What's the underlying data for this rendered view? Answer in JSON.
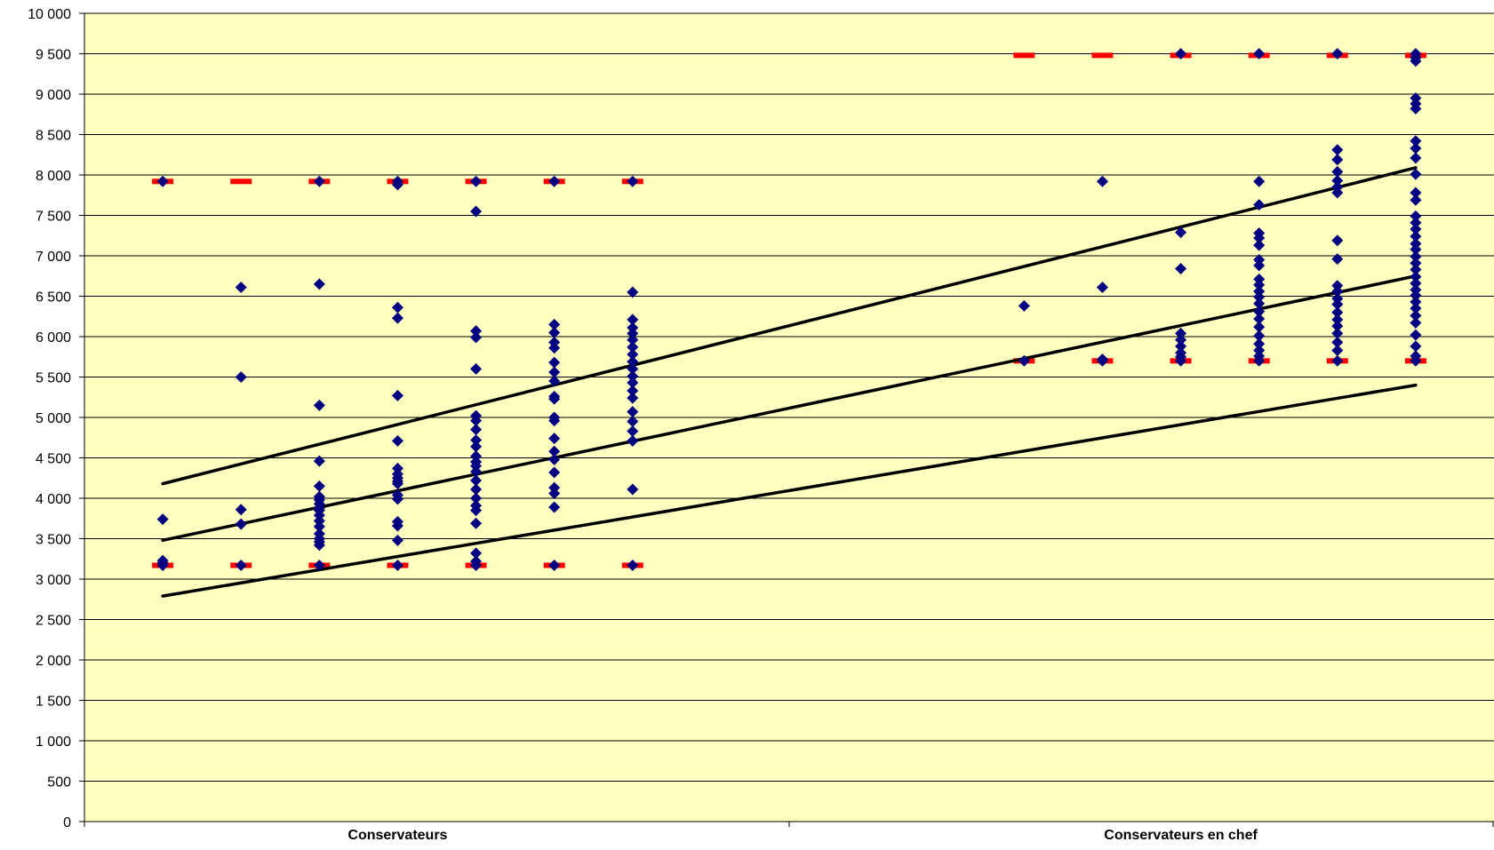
{
  "chart_data": {
    "type": "scatter",
    "title": "",
    "xlabel": "",
    "ylabel": "",
    "ylim": [
      0,
      10000
    ],
    "y_ticks": [
      0,
      500,
      1000,
      1500,
      2000,
      2500,
      3000,
      3500,
      4000,
      4500,
      5000,
      5500,
      6000,
      6500,
      7000,
      7500,
      8000,
      8500,
      9000,
      9500,
      10000
    ],
    "y_tick_labels": [
      "0",
      "500",
      "1 000",
      "1 500",
      "2 000",
      "2 500",
      "3 000",
      "3 500",
      "4 000",
      "4 500",
      "5 000",
      "5 500",
      "6 000",
      "6 500",
      "7 000",
      "7 500",
      "8 000",
      "8 500",
      "9 000",
      "9 500",
      "10 000"
    ],
    "x_range": [
      0,
      18
    ],
    "categories": [
      {
        "label": "Conservateurs",
        "x": 4
      },
      {
        "label": "Conservateurs en chef",
        "x": 14
      }
    ],
    "grid": "horizontal",
    "colors": {
      "plot_background": "#FFFFC0",
      "points": "#000080",
      "bounds": "#FF0000",
      "trend_lines": "#000000",
      "grid": "#000000"
    },
    "series": [
      {
        "role": "points",
        "points": [
          [
            1,
            3170
          ],
          [
            1,
            3200
          ],
          [
            1,
            3230
          ],
          [
            1,
            3740
          ],
          [
            1,
            7920
          ],
          [
            2,
            3170
          ],
          [
            2,
            3680
          ],
          [
            2,
            3860
          ],
          [
            2,
            5500
          ],
          [
            2,
            6610
          ],
          [
            3,
            3170
          ],
          [
            3,
            3420
          ],
          [
            3,
            3460
          ],
          [
            3,
            3500
          ],
          [
            3,
            3560
          ],
          [
            3,
            3650
          ],
          [
            3,
            3720
          ],
          [
            3,
            3790
          ],
          [
            3,
            3850
          ],
          [
            3,
            3880
          ],
          [
            3,
            3930
          ],
          [
            3,
            3980
          ],
          [
            3,
            4020
          ],
          [
            3,
            4150
          ],
          [
            3,
            4460
          ],
          [
            3,
            5150
          ],
          [
            3,
            6650
          ],
          [
            3,
            7920
          ],
          [
            4,
            3170
          ],
          [
            4,
            3480
          ],
          [
            4,
            3660
          ],
          [
            4,
            3710
          ],
          [
            4,
            3990
          ],
          [
            4,
            4040
          ],
          [
            4,
            4180
          ],
          [
            4,
            4210
          ],
          [
            4,
            4250
          ],
          [
            4,
            4300
          ],
          [
            4,
            4370
          ],
          [
            4,
            4710
          ],
          [
            4,
            5270
          ],
          [
            4,
            6230
          ],
          [
            4,
            6360
          ],
          [
            4,
            7880
          ],
          [
            4,
            7920
          ],
          [
            5,
            3170
          ],
          [
            5,
            3220
          ],
          [
            5,
            3320
          ],
          [
            5,
            3690
          ],
          [
            5,
            3850
          ],
          [
            5,
            3910
          ],
          [
            5,
            4000
          ],
          [
            5,
            4110
          ],
          [
            5,
            4220
          ],
          [
            5,
            4330
          ],
          [
            5,
            4400
          ],
          [
            5,
            4450
          ],
          [
            5,
            4520
          ],
          [
            5,
            4640
          ],
          [
            5,
            4720
          ],
          [
            5,
            4850
          ],
          [
            5,
            4960
          ],
          [
            5,
            5020
          ],
          [
            5,
            5600
          ],
          [
            5,
            5990
          ],
          [
            5,
            6070
          ],
          [
            5,
            7550
          ],
          [
            5,
            7920
          ],
          [
            6,
            3170
          ],
          [
            6,
            3890
          ],
          [
            6,
            4060
          ],
          [
            6,
            4130
          ],
          [
            6,
            4320
          ],
          [
            6,
            4480
          ],
          [
            6,
            4580
          ],
          [
            6,
            4740
          ],
          [
            6,
            4960
          ],
          [
            6,
            5000
          ],
          [
            6,
            5230
          ],
          [
            6,
            5260
          ],
          [
            6,
            5450
          ],
          [
            6,
            5560
          ],
          [
            6,
            5680
          ],
          [
            6,
            5860
          ],
          [
            6,
            5930
          ],
          [
            6,
            6050
          ],
          [
            6,
            6150
          ],
          [
            6,
            7920
          ],
          [
            7,
            3170
          ],
          [
            7,
            4110
          ],
          [
            7,
            4710
          ],
          [
            7,
            4830
          ],
          [
            7,
            4950
          ],
          [
            7,
            5070
          ],
          [
            7,
            5240
          ],
          [
            7,
            5330
          ],
          [
            7,
            5430
          ],
          [
            7,
            5510
          ],
          [
            7,
            5600
          ],
          [
            7,
            5690
          ],
          [
            7,
            5780
          ],
          [
            7,
            5870
          ],
          [
            7,
            5960
          ],
          [
            7,
            6040
          ],
          [
            7,
            6110
          ],
          [
            7,
            6210
          ],
          [
            7,
            6550
          ],
          [
            7,
            7920
          ],
          [
            12,
            5700
          ],
          [
            12,
            6380
          ],
          [
            13,
            5700
          ],
          [
            13,
            5720
          ],
          [
            13,
            6610
          ],
          [
            13,
            7920
          ],
          [
            14,
            5700
          ],
          [
            14,
            5750
          ],
          [
            14,
            5800
          ],
          [
            14,
            5880
          ],
          [
            14,
            5960
          ],
          [
            14,
            6040
          ],
          [
            14,
            6840
          ],
          [
            14,
            7290
          ],
          [
            14,
            9500
          ],
          [
            15,
            5700
          ],
          [
            15,
            5760
          ],
          [
            15,
            5830
          ],
          [
            15,
            5910
          ],
          [
            15,
            6010
          ],
          [
            15,
            6120
          ],
          [
            15,
            6220
          ],
          [
            15,
            6310
          ],
          [
            15,
            6410
          ],
          [
            15,
            6490
          ],
          [
            15,
            6560
          ],
          [
            15,
            6640
          ],
          [
            15,
            6710
          ],
          [
            15,
            6880
          ],
          [
            15,
            6950
          ],
          [
            15,
            7130
          ],
          [
            15,
            7220
          ],
          [
            15,
            7280
          ],
          [
            15,
            7630
          ],
          [
            15,
            7920
          ],
          [
            15,
            9500
          ],
          [
            16,
            5700
          ],
          [
            16,
            5830
          ],
          [
            16,
            5930
          ],
          [
            16,
            6040
          ],
          [
            16,
            6130
          ],
          [
            16,
            6210
          ],
          [
            16,
            6300
          ],
          [
            16,
            6400
          ],
          [
            16,
            6470
          ],
          [
            16,
            6560
          ],
          [
            16,
            6630
          ],
          [
            16,
            6960
          ],
          [
            16,
            7190
          ],
          [
            16,
            7780
          ],
          [
            16,
            7850
          ],
          [
            16,
            7930
          ],
          [
            16,
            8040
          ],
          [
            16,
            8190
          ],
          [
            16,
            8310
          ],
          [
            16,
            9500
          ],
          [
            17,
            5700
          ],
          [
            17,
            5760
          ],
          [
            17,
            5880
          ],
          [
            17,
            6020
          ],
          [
            17,
            6170
          ],
          [
            17,
            6260
          ],
          [
            17,
            6350
          ],
          [
            17,
            6430
          ],
          [
            17,
            6510
          ],
          [
            17,
            6580
          ],
          [
            17,
            6660
          ],
          [
            17,
            6740
          ],
          [
            17,
            6830
          ],
          [
            17,
            6910
          ],
          [
            17,
            6990
          ],
          [
            17,
            7080
          ],
          [
            17,
            7150
          ],
          [
            17,
            7240
          ],
          [
            17,
            7330
          ],
          [
            17,
            7410
          ],
          [
            17,
            7490
          ],
          [
            17,
            7690
          ],
          [
            17,
            7780
          ],
          [
            17,
            8010
          ],
          [
            17,
            8210
          ],
          [
            17,
            8330
          ],
          [
            17,
            8420
          ],
          [
            17,
            8820
          ],
          [
            17,
            8880
          ],
          [
            17,
            8950
          ],
          [
            17,
            9410
          ],
          [
            17,
            9450
          ],
          [
            17,
            9500
          ]
        ]
      },
      {
        "role": "bounds",
        "points": [
          [
            1,
            3170
          ],
          [
            1,
            7920
          ],
          [
            2,
            3170
          ],
          [
            2,
            7920
          ],
          [
            3,
            3170
          ],
          [
            3,
            7920
          ],
          [
            4,
            3170
          ],
          [
            4,
            7920
          ],
          [
            5,
            3170
          ],
          [
            5,
            7920
          ],
          [
            6,
            3170
          ],
          [
            6,
            7920
          ],
          [
            7,
            3170
          ],
          [
            7,
            7920
          ],
          [
            12,
            5700
          ],
          [
            12,
            9480
          ],
          [
            13,
            5700
          ],
          [
            13,
            9480
          ],
          [
            14,
            5700
          ],
          [
            14,
            9480
          ],
          [
            15,
            5700
          ],
          [
            15,
            9480
          ],
          [
            16,
            5700
          ],
          [
            16,
            9480
          ],
          [
            17,
            5700
          ],
          [
            17,
            9480
          ]
        ]
      },
      {
        "role": "trend",
        "lines": [
          [
            [
              1,
              4180
            ],
            [
              17,
              8090
            ]
          ],
          [
            [
              1,
              3480
            ],
            [
              17,
              6750
            ]
          ],
          [
            [
              1,
              2790
            ],
            [
              17,
              5400
            ]
          ]
        ]
      }
    ]
  }
}
